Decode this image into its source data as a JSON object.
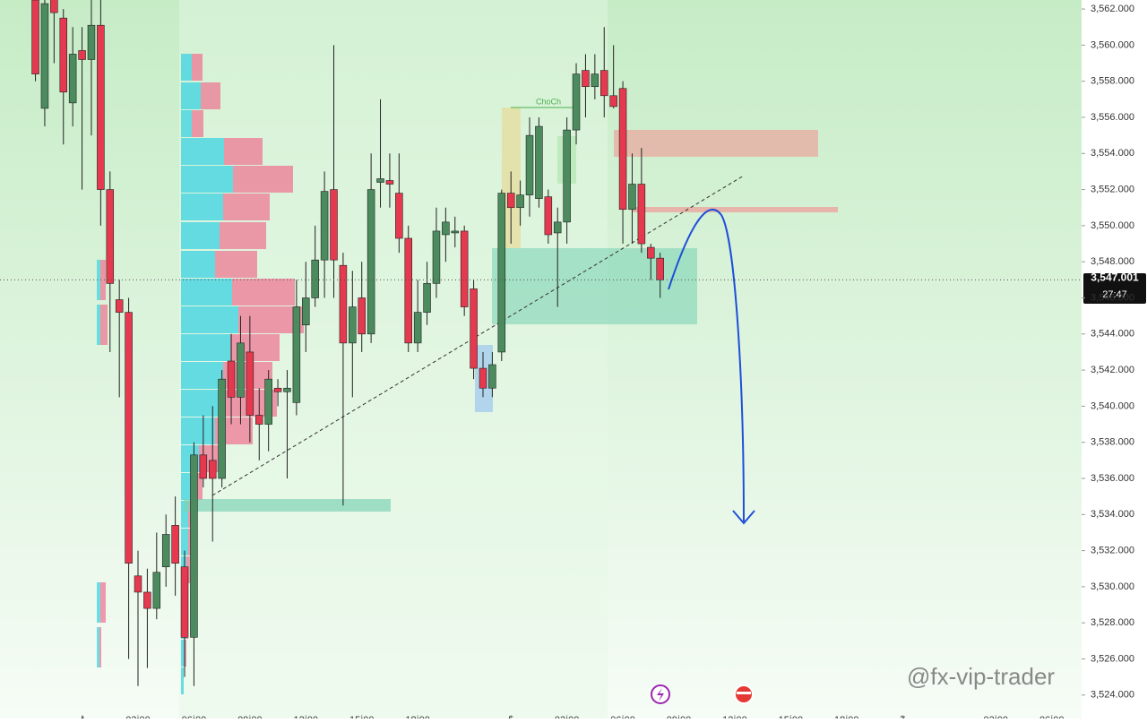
{
  "chart_data": {
    "type": "candlestick",
    "up_color": "#4b8b5e",
    "down_color": "#e5394f",
    "open": [
      3562.5,
      3556.5,
      3562.8,
      3561.5,
      3556.8,
      3559.7,
      3559.2,
      3561.1,
      3552,
      3545.9,
      3545.2,
      3530.6,
      3529.7,
      3528.8,
      3531.1,
      3533.4,
      3531.1,
      3527.2,
      3537.3,
      3537,
      3536,
      3542.5,
      3540.5,
      3543,
      3539.5,
      3539,
      3541,
      3540.8,
      3540.2,
      3544.5,
      3546,
      3548.1,
      3552,
      3547.8,
      3543.5,
      3546,
      3544,
      3552.4,
      3552.5,
      3551.8,
      3549.3,
      3543.5,
      3545.2,
      3546.8,
      3549.5,
      3549.6,
      3549.7,
      3546.5,
      3542.1,
      3541,
      3543,
      3551.8,
      3551,
      3551.7,
      3551.5,
      3551.6,
      3549.6,
      3550.2,
      3555.3,
      3558.6,
      3557.7,
      3558.6,
      3557.2,
      3557.6,
      3550.9,
      3552.3,
      3548.8,
      3548.2
    ],
    "high": [
      3563,
      3563,
      3563,
      3562,
      3561,
      3561,
      3562.5,
      3563,
      3553,
      3547,
      3546,
      3532,
      3531,
      3533,
      3534,
      3535,
      3532,
      3538,
      3539.5,
      3540,
      3542,
      3544,
      3545,
      3545,
      3541,
      3542,
      3541.5,
      3542,
      3547,
      3548,
      3550,
      3553,
      3560,
      3548.5,
      3547.5,
      3548,
      3554,
      3557,
      3554,
      3554,
      3550,
      3547,
      3548,
      3551,
      3551,
      3550.5,
      3550,
      3547,
      3543,
      3543,
      3552,
      3553,
      3552.5,
      3556,
      3556,
      3552,
      3551,
      3556,
      3559,
      3559.5,
      3559.5,
      3561,
      3560,
      3558,
      3554,
      3554.3,
      3549,
      3548.5
    ],
    "low": [
      3558,
      3555.5,
      3559,
      3554.5,
      3555.5,
      3552,
      3555,
      3550,
      3543,
      3540.5,
      3526,
      3524.5,
      3525.5,
      3528.2,
      3530,
      3529.5,
      3525,
      3524.5,
      3535.5,
      3532.5,
      3535.5,
      3539,
      3539,
      3538,
      3537,
      3537.5,
      3540,
      3536,
      3539.5,
      3543,
      3545.5,
      3546,
      3546,
      3534.5,
      3540.5,
      3543,
      3543.5,
      3551,
      3551,
      3548.5,
      3543,
      3543,
      3544.5,
      3546,
      3548,
      3548.8,
      3545,
      3541.5,
      3540.5,
      3540.5,
      3542.5,
      3549,
      3550,
      3550.5,
      3551,
      3549,
      3545.5,
      3549,
      3554.5,
      3556,
      3557,
      3556,
      3556.5,
      3549,
      3549,
      3548.5,
      3547,
      3546
    ],
    "close": [
      3558.4,
      3562.3,
      3561.8,
      3557.4,
      3559.5,
      3559.2,
      3561.1,
      3552,
      3546.8,
      3545.2,
      3531.3,
      3529.7,
      3528.8,
      3530.8,
      3532.9,
      3531.3,
      3527.2,
      3537.3,
      3536,
      3536,
      3541.5,
      3540.5,
      3543.5,
      3539.5,
      3539,
      3541.5,
      3540.8,
      3541,
      3545.5,
      3546,
      3548.1,
      3551.9,
      3548.1,
      3543.5,
      3545.5,
      3544,
      3552,
      3552.6,
      3552.3,
      3549.3,
      3543.5,
      3545.2,
      3546.8,
      3549.7,
      3550.2,
      3549.7,
      3545.5,
      3542.1,
      3541,
      3542.3,
      3551.8,
      3551,
      3551.7,
      3555,
      3555.5,
      3549.5,
      3550.2,
      3555.3,
      3558.4,
      3557.7,
      3558.4,
      3557.2,
      3556.6,
      3550.9,
      3552.3,
      3549,
      3548.2,
      3547
    ],
    "xlim": [
      -3.8,
      112.2
    ],
    "xticks": [
      {
        "value": 5,
        "label": "4"
      },
      {
        "value": 11,
        "label": "03:00"
      },
      {
        "value": 17,
        "label": "06:00"
      },
      {
        "value": 23,
        "label": "09:00"
      },
      {
        "value": 29,
        "label": "12:00"
      },
      {
        "value": 35,
        "label": "15:00"
      },
      {
        "value": 41,
        "label": "18:00"
      },
      {
        "value": 51,
        "label": "5"
      },
      {
        "value": 57,
        "label": "03:00"
      },
      {
        "value": 63,
        "label": "06:00"
      },
      {
        "value": 69,
        "label": "09:00"
      },
      {
        "value": 75,
        "label": "12:00"
      },
      {
        "value": 81,
        "label": "15:00"
      },
      {
        "value": 87,
        "label": "18:00"
      },
      {
        "value": 93,
        "label": "7"
      },
      {
        "value": 103,
        "label": "03:00"
      },
      {
        "value": 109,
        "label": "06:00"
      }
    ],
    "ylim": [
      3522.7,
      3562.5
    ],
    "yticks": [
      {
        "value": 3524,
        "label": "3,524.000"
      },
      {
        "value": 3526,
        "label": "3,526.000"
      },
      {
        "value": 3528,
        "label": "3,528.000"
      },
      {
        "value": 3530,
        "label": "3,530.000"
      },
      {
        "value": 3532,
        "label": "3,532.000"
      },
      {
        "value": 3534,
        "label": "3,534.000"
      },
      {
        "value": 3536,
        "label": "3,536.000"
      },
      {
        "value": 3538,
        "label": "3,538.000"
      },
      {
        "value": 3540,
        "label": "3,540.000"
      },
      {
        "value": 3542,
        "label": "3,542.000"
      },
      {
        "value": 3544,
        "label": "3,544.000"
      },
      {
        "value": 3546,
        "label": "3,546.000"
      },
      {
        "value": 3548,
        "label": "3,548.000"
      },
      {
        "value": 3550,
        "label": "3,550.000"
      },
      {
        "value": 3552,
        "label": "3,552.000"
      },
      {
        "value": 3554,
        "label": "3,554.000"
      },
      {
        "value": 3556,
        "label": "3,556.000"
      },
      {
        "value": 3558,
        "label": "3,558.000"
      },
      {
        "value": 3560,
        "label": "3,560.000"
      },
      {
        "value": 3562,
        "label": "3,562.000"
      }
    ],
    "last_price": {
      "value": 3547.001,
      "label": "3,547.001"
    },
    "countdown": "27:47",
    "annotation": "ChoCh",
    "watermark": "@fx-vip-trader"
  }
}
